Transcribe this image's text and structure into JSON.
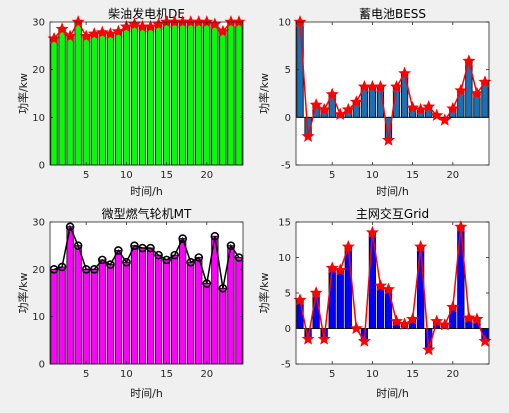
{
  "chart_data": [
    {
      "type": "bar",
      "title": "柴油发电机DE",
      "xlabel": "时间/h",
      "ylabel": "功率/kw",
      "x": [
        1,
        2,
        3,
        4,
        5,
        6,
        7,
        8,
        9,
        10,
        11,
        12,
        13,
        14,
        15,
        16,
        17,
        18,
        19,
        20,
        21,
        22,
        23,
        24
      ],
      "values": [
        26.5,
        28.5,
        27,
        30,
        27,
        27.5,
        27.8,
        27.5,
        28,
        29,
        29.5,
        29,
        29,
        29.5,
        30,
        30,
        30,
        30,
        30,
        30,
        29.5,
        28,
        30,
        30
      ],
      "xlim": [
        0.5,
        24.5
      ],
      "ylim": [
        0,
        30
      ],
      "xticks": [
        5,
        10,
        15,
        20
      ],
      "yticks": [
        0,
        10,
        20,
        30
      ],
      "bar_color": "#00ff00",
      "line_color": "#ff0000",
      "marker": "star",
      "grid": false
    },
    {
      "type": "bar",
      "title": "蓄电池BESS",
      "xlabel": "时间/h",
      "ylabel": "功率/kw",
      "x": [
        1,
        2,
        3,
        4,
        5,
        6,
        7,
        8,
        9,
        10,
        11,
        12,
        13,
        14,
        15,
        16,
        17,
        18,
        19,
        20,
        21,
        22,
        23,
        24
      ],
      "values": [
        10,
        -2,
        1.3,
        0.8,
        2.4,
        0.3,
        0.8,
        1.6,
        3.2,
        3.2,
        3.2,
        -2.4,
        3.2,
        4.6,
        1,
        0.8,
        1.1,
        0.2,
        -0.3,
        0.9,
        2.8,
        5.9,
        2.5,
        3.7
      ],
      "xlim": [
        0.5,
        24.5
      ],
      "ylim": [
        -5,
        10
      ],
      "xticks": [
        5,
        10,
        15,
        20
      ],
      "yticks": [
        -5,
        0,
        5,
        10
      ],
      "bar_color": "#1b6fb5",
      "line_color": "#ff0000",
      "marker": "star",
      "grid": false
    },
    {
      "type": "bar",
      "title": "微型燃气轮机MT",
      "xlabel": "时间/h",
      "ylabel": "功率/kw",
      "x": [
        1,
        2,
        3,
        4,
        5,
        6,
        7,
        8,
        9,
        10,
        11,
        12,
        13,
        14,
        15,
        16,
        17,
        18,
        19,
        20,
        21,
        22,
        23,
        24
      ],
      "values": [
        20,
        20.5,
        29,
        25,
        20,
        20,
        22,
        21,
        24,
        21.5,
        25,
        24.5,
        24.5,
        23,
        22,
        23,
        26.5,
        21.5,
        22.5,
        17,
        27,
        16,
        25,
        22.5
      ],
      "xlim": [
        0.5,
        24.5
      ],
      "ylim": [
        0,
        30
      ],
      "xticks": [
        5,
        10,
        15,
        20
      ],
      "yticks": [
        0,
        10,
        20,
        30
      ],
      "bar_color": "#ff00ff",
      "line_color": "#000000",
      "marker": "circle",
      "grid": false
    },
    {
      "type": "bar",
      "title": "主网交互Grid",
      "xlabel": "时间/h",
      "ylabel": "功率/kw",
      "x": [
        1,
        2,
        3,
        4,
        5,
        6,
        7,
        8,
        9,
        10,
        11,
        12,
        13,
        14,
        15,
        16,
        17,
        18,
        19,
        20,
        21,
        22,
        23,
        24
      ],
      "values": [
        4,
        -1.5,
        5,
        -1.5,
        8.5,
        8.2,
        11.5,
        0,
        -1.8,
        13.5,
        6,
        5.5,
        1,
        0.6,
        1.3,
        11.5,
        -3,
        1,
        0.5,
        3,
        14.3,
        1.5,
        1.3,
        -1.8
      ],
      "xlim": [
        0.5,
        24.5
      ],
      "ylim": [
        -5,
        15
      ],
      "xticks": [
        5,
        10,
        15,
        20
      ],
      "yticks": [
        -5,
        0,
        5,
        10,
        15
      ],
      "bar_color": "#0000ff",
      "line_color": "#ff0000",
      "marker": "star",
      "grid": false
    }
  ]
}
